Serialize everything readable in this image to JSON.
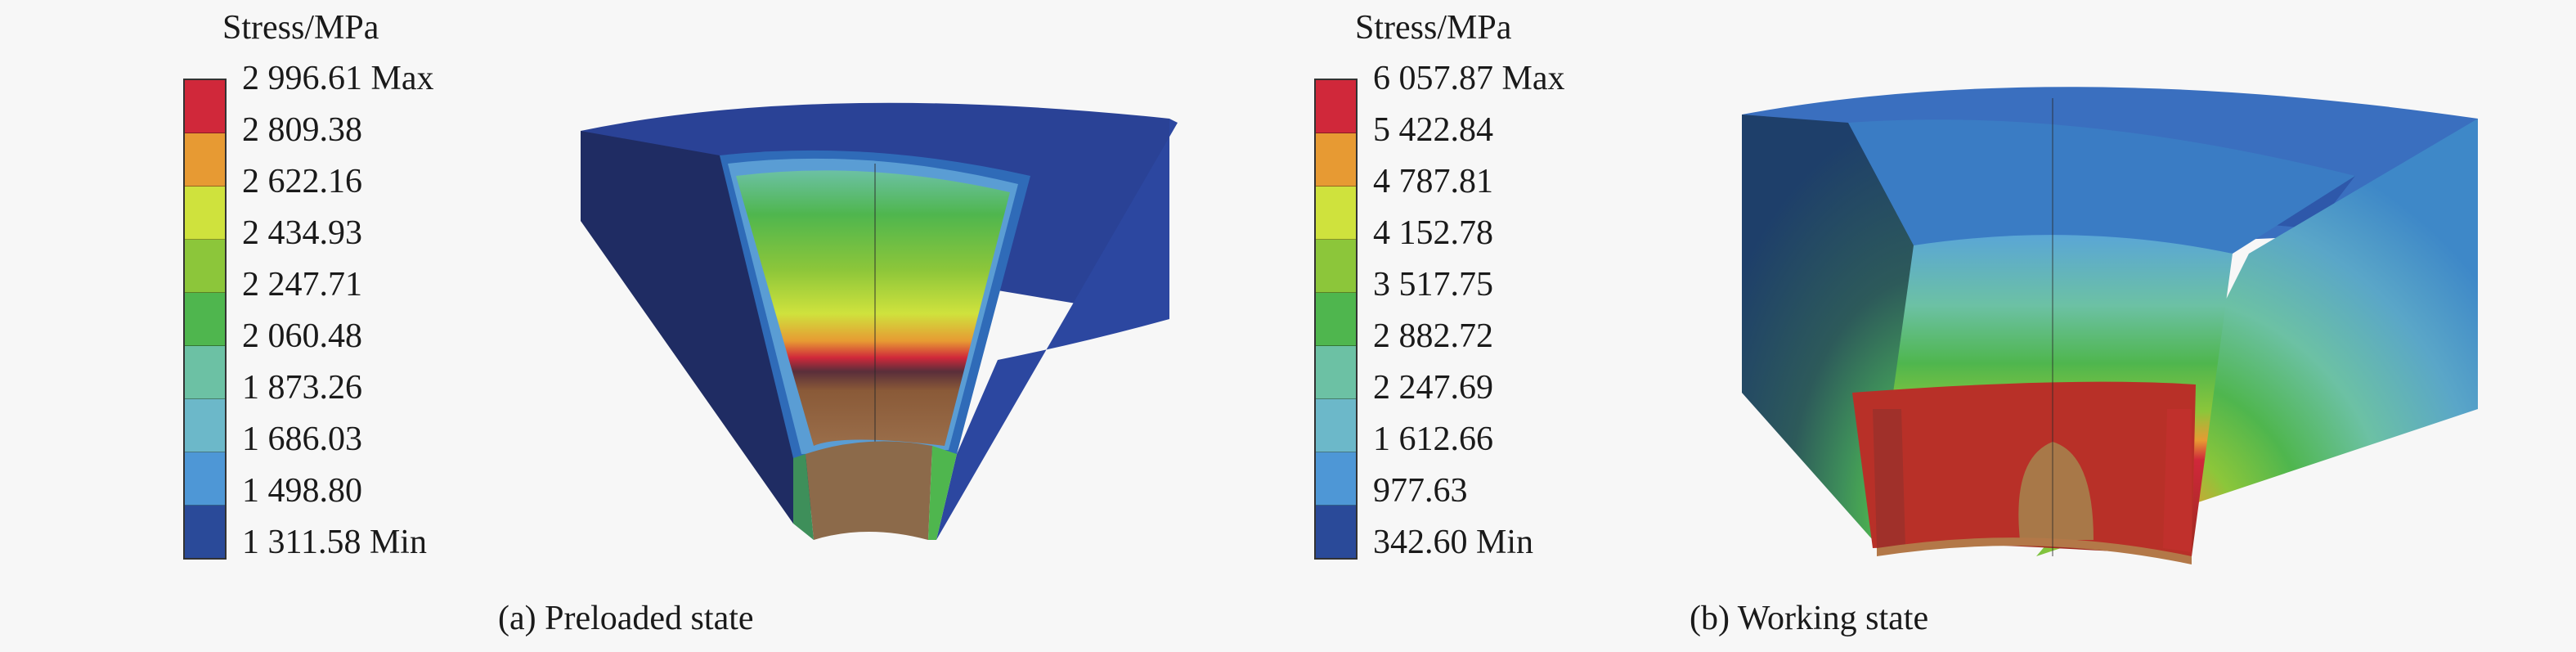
{
  "panels": [
    {
      "legend_title": "Stress/MPa",
      "legend_labels": [
        "2 996.61 Max",
        "2 809.38",
        "2 622.16",
        "2 434.93",
        "2 247.71",
        "2 060.48",
        "1 873.26",
        "1 686.03",
        "1 498.80",
        "1 311.58 Min"
      ],
      "caption": "(a) Preloaded state"
    },
    {
      "legend_title": "Stress/MPa",
      "legend_labels": [
        "6 057.87 Max",
        "5 422.84",
        "4 787.81",
        "4 152.78",
        "3 517.75",
        "2 882.72",
        "2 247.69",
        "1 612.66",
        "977.63",
        "342.60 Min"
      ],
      "caption": "(b) Working state"
    }
  ],
  "legend_colors": [
    "#d0283a",
    "#e79a33",
    "#cfe23d",
    "#8cc63a",
    "#4fb64e",
    "#6cc1a4",
    "#6cb8c9",
    "#4e97d6",
    "#2a4a99"
  ]
}
